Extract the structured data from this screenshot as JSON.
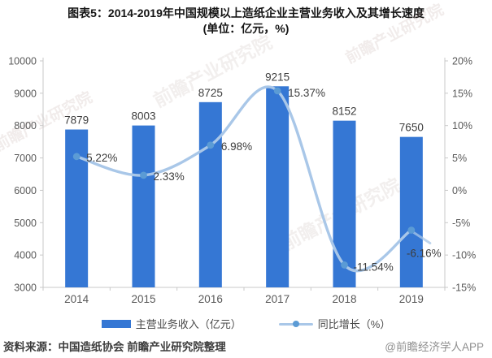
{
  "title": {
    "line1": "图表5：2014-2019年中国规模以上造纸企业主营业务收入及其增长速度",
    "line2": "(单位：亿元，%)"
  },
  "chart_data": {
    "type": "bar+line combo",
    "categories": [
      "2014",
      "2015",
      "2016",
      "2017",
      "2018",
      "2019"
    ],
    "series": [
      {
        "name": "主营业务收入（亿元）",
        "type": "bar",
        "axis": "left",
        "values": [
          7879,
          8003,
          8725,
          9215,
          8152,
          7650
        ],
        "labels": [
          "7879",
          "8003",
          "8725",
          "9215",
          "8152",
          "7650"
        ],
        "color": "#3577d4"
      },
      {
        "name": "同比增长（%）",
        "type": "line",
        "axis": "right",
        "values": [
          5.22,
          2.33,
          6.98,
          15.37,
          -11.54,
          -6.16
        ],
        "labels": [
          "5.22%",
          "2.33%",
          "6.98%",
          "15.37%",
          "-11.54%",
          "-6.16%"
        ],
        "color": "#a9c7e8",
        "marker_color": "#5b9bd5",
        "label_offsets": [
          [
            12,
            6
          ],
          [
            12,
            6
          ],
          [
            13,
            6
          ],
          [
            13,
            7
          ],
          [
            11,
            7
          ],
          [
            -6,
            33
          ]
        ],
        "smooth": true
      }
    ],
    "left_axis": {
      "min": 3000,
      "max": 10000,
      "ticks": [
        "10000",
        "9000",
        "8000",
        "7000",
        "6000",
        "5000",
        "4000",
        "3000"
      ]
    },
    "right_axis": {
      "min": -15,
      "max": 20,
      "ticks": [
        "20%",
        "15%",
        "10%",
        "5%",
        "0%",
        "-5%",
        "-10%",
        "-15%"
      ]
    },
    "grid": false,
    "legend_position": "bottom"
  },
  "legend": {
    "bar_label": "主营业务收入（亿元）",
    "line_label": "同比增长（%）"
  },
  "footer": {
    "source": "资料来源：中国造纸协会 前瞻产业研究院整理",
    "credit": "@前瞻经济学人APP"
  },
  "watermark": {
    "text": "前瞻产业研究院"
  },
  "colors": {
    "bar": "#3577d4",
    "line": "#a9c7e8",
    "marker": "#5b9bd5",
    "axis_line": "#c9c9c9",
    "tick_text": "#595959",
    "label_text": "#3d3d3d"
  }
}
